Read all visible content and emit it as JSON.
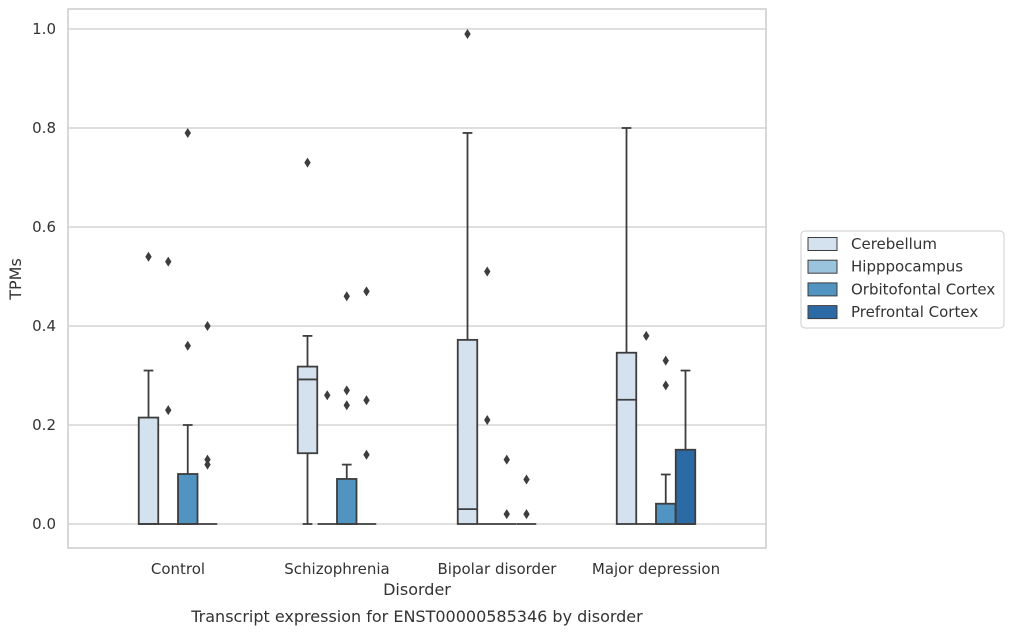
{
  "chart_data": {
    "type": "box",
    "xlabel": "Disorder",
    "ylabel": "TPMs",
    "caption": "Transcript expression for ENST00000585346 by disorder",
    "ylim": [
      -0.048,
      1.04
    ],
    "yticks": [
      "0.0",
      "0.2",
      "0.4",
      "0.6",
      "0.8",
      "1.0"
    ],
    "grid": true,
    "legend_position": "right",
    "categories": [
      "Control",
      "Schizophrenia",
      "Bipolar disorder",
      "Major depression"
    ],
    "series": [
      {
        "name": "Cerebellum",
        "color": "#d4e2f0",
        "boxes": [
          {
            "q1": 0.0,
            "median": 0.0,
            "q3": 0.215,
            "whisker_low": 0.0,
            "whisker_high": 0.31,
            "outliers": [
              0.54
            ]
          },
          {
            "q1": 0.143,
            "median": 0.292,
            "q3": 0.318,
            "whisker_low": 0.0,
            "whisker_high": 0.38,
            "outliers": [
              0.73
            ]
          },
          {
            "q1": 0.0,
            "median": 0.03,
            "q3": 0.372,
            "whisker_low": 0.0,
            "whisker_high": 0.79,
            "outliers": [
              0.99
            ]
          },
          {
            "q1": 0.0,
            "median": 0.251,
            "q3": 0.346,
            "whisker_low": 0.0,
            "whisker_high": 0.8,
            "outliers": []
          }
        ]
      },
      {
        "name": "Hipppocampus",
        "color": "#9ac4de",
        "boxes": [
          {
            "q1": 0.0,
            "median": 0.0,
            "q3": 0.0,
            "whisker_low": 0.0,
            "whisker_high": 0.0,
            "outliers": [
              0.53,
              0.23
            ]
          },
          {
            "q1": 0.0,
            "median": 0.0,
            "q3": 0.0,
            "whisker_low": 0.0,
            "whisker_high": 0.0,
            "outliers": [
              0.26
            ]
          },
          {
            "q1": 0.0,
            "median": 0.0,
            "q3": 0.0,
            "whisker_low": 0.0,
            "whisker_high": 0.0,
            "outliers": [
              0.51,
              0.21
            ]
          },
          {
            "q1": 0.0,
            "median": 0.0,
            "q3": 0.0,
            "whisker_low": 0.0,
            "whisker_high": 0.0,
            "outliers": [
              0.38
            ]
          }
        ]
      },
      {
        "name": "Orbitofontal Cortex",
        "color": "#5193c1",
        "boxes": [
          {
            "q1": 0.0,
            "median": 0.0,
            "q3": 0.101,
            "whisker_low": 0.0,
            "whisker_high": 0.2,
            "outliers": [
              0.79,
              0.36
            ]
          },
          {
            "q1": 0.0,
            "median": 0.0,
            "q3": 0.091,
            "whisker_low": 0.0,
            "whisker_high": 0.12,
            "outliers": [
              0.46,
              0.27,
              0.24
            ]
          },
          {
            "q1": 0.0,
            "median": 0.0,
            "q3": 0.0,
            "whisker_low": 0.0,
            "whisker_high": 0.0,
            "outliers": [
              0.13,
              0.02
            ]
          },
          {
            "q1": 0.0,
            "median": 0.0,
            "q3": 0.041,
            "whisker_low": 0.0,
            "whisker_high": 0.1,
            "outliers": [
              0.33,
              0.28
            ]
          }
        ]
      },
      {
        "name": "Prefrontal Cortex",
        "color": "#2c6aa6",
        "boxes": [
          {
            "q1": 0.0,
            "median": 0.0,
            "q3": 0.0,
            "whisker_low": 0.0,
            "whisker_high": 0.0,
            "outliers": [
              0.4,
              0.13,
              0.12
            ]
          },
          {
            "q1": 0.0,
            "median": 0.0,
            "q3": 0.0,
            "whisker_low": 0.0,
            "whisker_high": 0.0,
            "outliers": [
              0.47,
              0.25,
              0.14
            ]
          },
          {
            "q1": 0.0,
            "median": 0.0,
            "q3": 0.0,
            "whisker_low": 0.0,
            "whisker_high": 0.0,
            "outliers": [
              0.09,
              0.02
            ]
          },
          {
            "q1": 0.0,
            "median": 0.0,
            "q3": 0.15,
            "whisker_low": 0.0,
            "whisker_high": 0.31,
            "outliers": []
          }
        ]
      }
    ]
  },
  "legend": {
    "items": [
      {
        "label": "Cerebellum",
        "color": "#d4e2f0"
      },
      {
        "label": "Hipppocampus",
        "color": "#9ac4de"
      },
      {
        "label": "Orbitofontal Cortex",
        "color": "#5193c1"
      },
      {
        "label": "Prefrontal Cortex",
        "color": "#2c6aa6"
      }
    ]
  },
  "colors": {
    "grid": "#cccccc",
    "frame": "#cccccc",
    "box_edge": "#3d3d3d"
  }
}
